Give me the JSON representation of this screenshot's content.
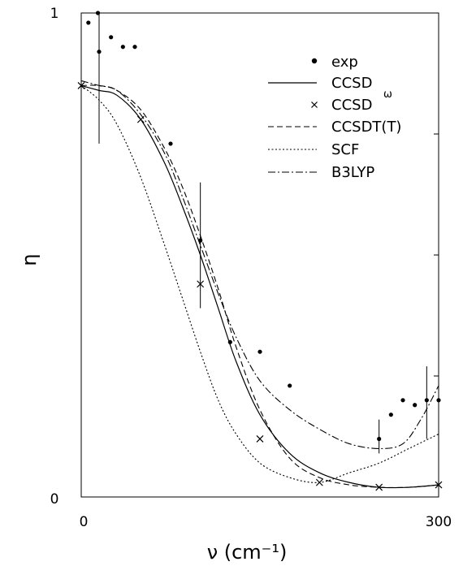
{
  "chart_data": {
    "type": "line",
    "xlabel": "ν (cm⁻¹)",
    "ylabel": "η",
    "xlim": [
      0,
      300
    ],
    "ylim": [
      0,
      1
    ],
    "x_tick_labels": [
      "0",
      "300"
    ],
    "y_tick_labels": [
      "0",
      "1"
    ],
    "grid": false,
    "legend_position": "top-right",
    "series": [
      {
        "name": "exp",
        "style": "points",
        "x": [
          6,
          14,
          15,
          25,
          35,
          45,
          75,
          100,
          125,
          150,
          175,
          250,
          260,
          270,
          280,
          290,
          300
        ],
        "y": [
          0.98,
          1.0,
          0.92,
          0.95,
          0.93,
          0.93,
          0.73,
          0.53,
          0.32,
          0.3,
          0.23,
          0.12,
          0.17,
          0.2,
          0.19,
          0.2,
          0.2
        ],
        "error_bars": [
          {
            "x": 15,
            "low": 0.73,
            "high": 1.0
          },
          {
            "x": 100,
            "low": 0.39,
            "high": 0.65
          },
          {
            "x": 250,
            "low": 0.09,
            "high": 0.16
          },
          {
            "x": 290,
            "low": 0.12,
            "high": 0.27
          }
        ]
      },
      {
        "name": "CCSD",
        "style": "solid",
        "x": [
          0,
          15,
          30,
          50,
          70,
          85,
          100,
          115,
          130,
          150,
          175,
          200,
          225,
          250,
          275,
          300
        ],
        "y": [
          0.85,
          0.84,
          0.83,
          0.78,
          0.69,
          0.6,
          0.5,
          0.39,
          0.28,
          0.17,
          0.09,
          0.05,
          0.03,
          0.02,
          0.02,
          0.025
        ]
      },
      {
        "name": "CCSD",
        "style": "cross-markers",
        "x": [
          0,
          50,
          100,
          150,
          200,
          250,
          300
        ],
        "y": [
          0.85,
          0.78,
          0.44,
          0.12,
          0.03,
          0.02,
          0.025
        ]
      },
      {
        "name": "CCSDT(T)",
        "style": "dashed",
        "x": [
          0,
          15,
          30,
          50,
          70,
          85,
          100,
          115,
          130,
          150,
          175,
          200,
          225,
          250,
          275,
          300
        ],
        "y": [
          0.85,
          0.85,
          0.84,
          0.8,
          0.72,
          0.64,
          0.54,
          0.43,
          0.31,
          0.18,
          0.08,
          0.04,
          0.025,
          0.02,
          0.02,
          0.025
        ]
      },
      {
        "name": "SCF",
        "style": "dotted",
        "x": [
          0,
          15,
          30,
          50,
          70,
          85,
          100,
          115,
          130,
          150,
          175,
          200,
          225,
          250,
          275,
          300
        ],
        "y": [
          0.85,
          0.82,
          0.77,
          0.66,
          0.52,
          0.41,
          0.3,
          0.2,
          0.13,
          0.07,
          0.04,
          0.03,
          0.05,
          0.07,
          0.1,
          0.13
        ]
      },
      {
        "name": "B3LYP",
        "style": "dashdot",
        "x": [
          0,
          15,
          30,
          50,
          70,
          85,
          100,
          115,
          130,
          150,
          175,
          200,
          225,
          250,
          270,
          285,
          300
        ],
        "y": [
          0.86,
          0.85,
          0.84,
          0.79,
          0.71,
          0.62,
          0.52,
          0.42,
          0.33,
          0.24,
          0.18,
          0.14,
          0.11,
          0.1,
          0.11,
          0.16,
          0.23
        ]
      }
    ],
    "legend": [
      "exp",
      "CCSD",
      "CCSD",
      "CCSDT(T)",
      "SCF",
      "B3LYP"
    ],
    "legend_superscript": "ω"
  }
}
